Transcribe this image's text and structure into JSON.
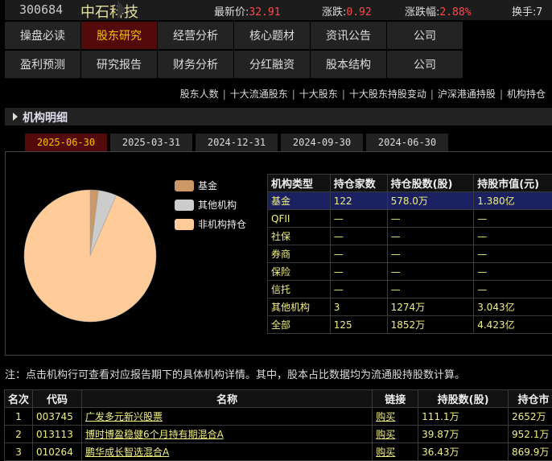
{
  "header": {
    "code": "300684",
    "name": "中石科技",
    "quotes": [
      {
        "label": "最新价:",
        "value": "32.91"
      },
      {
        "label": "涨跌:",
        "value": "0.92"
      },
      {
        "label": "涨跌幅:",
        "value": "2.88%"
      },
      {
        "label": "换手:",
        "value": "7"
      }
    ]
  },
  "nav": [
    [
      "操盘必读",
      "股东研究",
      "经营分析",
      "核心题材",
      "资讯公告",
      "公司"
    ],
    [
      "盈利预测",
      "研究报告",
      "财务分析",
      "分红融资",
      "股本结构",
      "公司"
    ]
  ],
  "nav_active": "股东研究",
  "sublinks": [
    "股东人数",
    "十大流通股东",
    "十大股东",
    "十大股东持股变动",
    "沪深港通持股",
    "机构持仓"
  ],
  "section_title": "机构明细",
  "period_tabs": [
    "2025-06-30",
    "2025-03-31",
    "2024-12-31",
    "2024-09-30",
    "2024-06-30"
  ],
  "active_period": "2025-06-30",
  "chart_data": {
    "type": "pie",
    "labels": [
      "基金",
      "其他机构",
      "非机构持仓"
    ],
    "values": [
      2,
      4.5,
      93.5
    ],
    "colors": [
      "#cc9966",
      "#cccccc",
      "#ffcc99"
    ],
    "legend": "right"
  },
  "inst_table": {
    "headers": [
      "机构类型",
      "持仓家数",
      "持仓股数(股)",
      "持股市值(元)"
    ],
    "rows": [
      [
        "基金",
        "122",
        "578.0万",
        "1.380亿"
      ],
      [
        "QFII",
        "—",
        "—",
        "—"
      ],
      [
        "社保",
        "—",
        "—",
        "—"
      ],
      [
        "券商",
        "—",
        "—",
        "—"
      ],
      [
        "保险",
        "—",
        "—",
        "—"
      ],
      [
        "信托",
        "—",
        "—",
        "—"
      ],
      [
        "其他机构",
        "3",
        "1274万",
        "3.043亿"
      ],
      [
        "全部",
        "125",
        "1852万",
        "4.423亿"
      ]
    ],
    "selected_row": 0
  },
  "note": "注：点击机构行可查看对应报告期下的具体机构详情。其中，股本占比数据均为流通股持股数计算。",
  "fund_table": {
    "headers": [
      "名次",
      "代码",
      "名称",
      "链接",
      "持股数(股)",
      "持仓市"
    ],
    "rows": [
      [
        "1",
        "003745",
        "广发多元新兴股票",
        "购买",
        "111.1万",
        "2652万"
      ],
      [
        "2",
        "013113",
        "博时博盈稳健6个月持有期混合A",
        "购买",
        "39.87万",
        "952.1万"
      ],
      [
        "3",
        "010264",
        "鹏华成长智选混合A",
        "购买",
        "36.43万",
        "869.9万"
      ]
    ]
  }
}
